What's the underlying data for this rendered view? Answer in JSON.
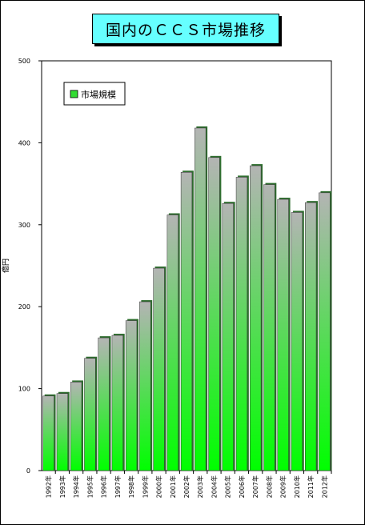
{
  "chart_data": {
    "type": "bar",
    "title": "国内のＣＣＳ市場推移",
    "ylabel": "億円",
    "xlabel": "",
    "ylim": [
      0,
      500
    ],
    "yticks": [
      0,
      100,
      200,
      300,
      400,
      500
    ],
    "categories": [
      "1992年",
      "1993年",
      "1994年",
      "1995年",
      "1996年",
      "1997年",
      "1998年",
      "1999年",
      "2000年",
      "2001年",
      "2002年",
      "2003年",
      "2004年",
      "2005年",
      "2006年",
      "2007年",
      "2008年",
      "2009年",
      "2010年",
      "2011年",
      "2012年"
    ],
    "series": [
      {
        "name": "市場規模",
        "values": [
          91,
          94,
          108,
          137,
          162,
          165,
          183,
          206,
          247,
          312,
          364,
          418,
          382,
          326,
          358,
          372,
          349,
          331,
          315,
          327,
          339
        ]
      }
    ],
    "legend_position": "top-left",
    "grid": false,
    "colors": {
      "bar_top": "#b4b4b4",
      "bar_bottom": "#00ff00",
      "title_bg": "#66ffff"
    }
  }
}
